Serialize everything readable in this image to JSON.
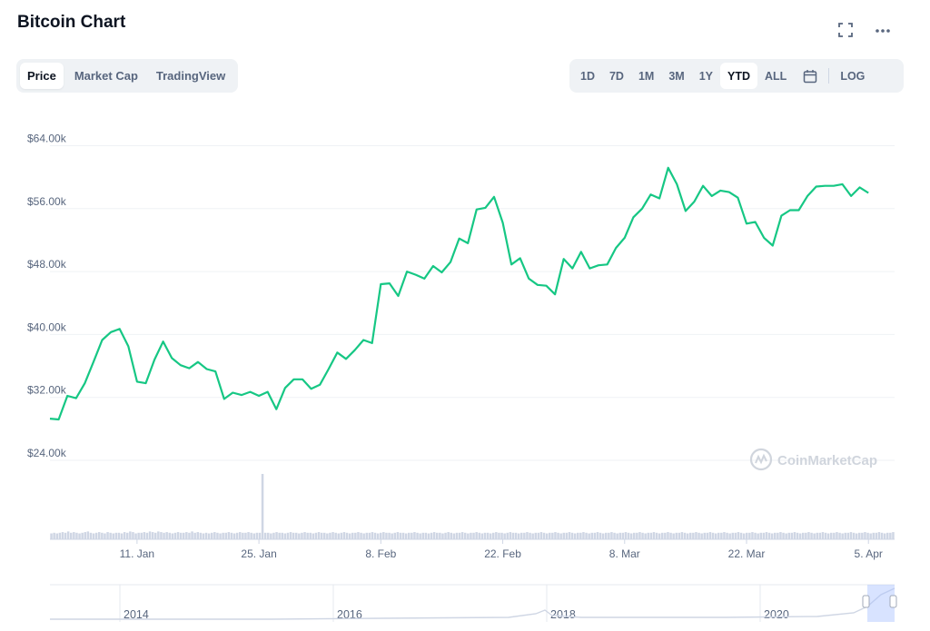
{
  "header": {
    "title": "Bitcoin Chart",
    "fullscreen_icon": "expand-icon",
    "more_icon": "more-horizontal-icon"
  },
  "tabs": [
    {
      "label": "Price",
      "active": true
    },
    {
      "label": "Market Cap",
      "active": false
    },
    {
      "label": "TradingView",
      "active": false
    }
  ],
  "ranges": [
    {
      "label": "1D",
      "active": false
    },
    {
      "label": "7D",
      "active": false
    },
    {
      "label": "1M",
      "active": false
    },
    {
      "label": "3M",
      "active": false
    },
    {
      "label": "1Y",
      "active": false
    },
    {
      "label": "YTD",
      "active": true
    },
    {
      "label": "ALL",
      "active": false
    }
  ],
  "range_extras": {
    "calendar_icon": "calendar-icon",
    "log_label": "LOG"
  },
  "watermark": "CoinMarketCap",
  "colors": {
    "line": "#16c784",
    "volume": "#cfd6e4",
    "grid": "#eff2f5",
    "text": "#58667e",
    "navigator_highlight": "#a8c2ff"
  },
  "navigator": {
    "labels": [
      "2014",
      "2016",
      "2018",
      "2020"
    ]
  },
  "chart_data": {
    "type": "line",
    "title": "",
    "xlabel": "",
    "ylabel": "",
    "x_tick_labels": [
      "11. Jan",
      "25. Jan",
      "8. Feb",
      "22. Feb",
      "8. Mar",
      "22. Mar",
      "5. Apr"
    ],
    "y_tick_labels": [
      "$24.00k",
      "$32.00k",
      "$40.00k",
      "$48.00k",
      "$56.00k",
      "$64.00k"
    ],
    "y_ticks": [
      24000,
      32000,
      40000,
      48000,
      56000,
      64000
    ],
    "ylim": [
      21000,
      64000
    ],
    "xlim": [
      "2021-01-01",
      "2021-04-08"
    ],
    "grid": true,
    "series": [
      {
        "values": [
          [
            "2021-01-01",
            29300
          ],
          [
            "2021-01-02",
            29200
          ],
          [
            "2021-01-03",
            32200
          ],
          [
            "2021-01-04",
            31900
          ],
          [
            "2021-01-05",
            33800
          ],
          [
            "2021-01-06",
            36500
          ],
          [
            "2021-01-07",
            39300
          ],
          [
            "2021-01-08",
            40300
          ],
          [
            "2021-01-09",
            40700
          ],
          [
            "2021-01-10",
            38500
          ],
          [
            "2021-01-11",
            34000
          ],
          [
            "2021-01-12",
            33800
          ],
          [
            "2021-01-13",
            36800
          ],
          [
            "2021-01-14",
            39100
          ],
          [
            "2021-01-15",
            37000
          ],
          [
            "2021-01-16",
            36100
          ],
          [
            "2021-01-17",
            35700
          ],
          [
            "2021-01-18",
            36500
          ],
          [
            "2021-01-19",
            35600
          ],
          [
            "2021-01-20",
            35300
          ],
          [
            "2021-01-21",
            31800
          ],
          [
            "2021-01-22",
            32600
          ],
          [
            "2021-01-23",
            32300
          ],
          [
            "2021-01-24",
            32700
          ],
          [
            "2021-01-25",
            32200
          ],
          [
            "2021-01-26",
            32700
          ],
          [
            "2021-01-27",
            30500
          ],
          [
            "2021-01-28",
            33200
          ],
          [
            "2021-01-29",
            34300
          ],
          [
            "2021-01-30",
            34300
          ],
          [
            "2021-01-31",
            33100
          ],
          [
            "2021-02-01",
            33600
          ],
          [
            "2021-02-02",
            35600
          ],
          [
            "2021-02-03",
            37700
          ],
          [
            "2021-02-04",
            36900
          ],
          [
            "2021-02-05",
            38000
          ],
          [
            "2021-02-06",
            39300
          ],
          [
            "2021-02-07",
            38900
          ],
          [
            "2021-02-08",
            46400
          ],
          [
            "2021-02-09",
            46500
          ],
          [
            "2021-02-10",
            44900
          ],
          [
            "2021-02-11",
            48000
          ],
          [
            "2021-02-12",
            47600
          ],
          [
            "2021-02-13",
            47100
          ],
          [
            "2021-02-14",
            48700
          ],
          [
            "2021-02-15",
            47900
          ],
          [
            "2021-02-16",
            49200
          ],
          [
            "2021-02-17",
            52200
          ],
          [
            "2021-02-18",
            51600
          ],
          [
            "2021-02-19",
            55900
          ],
          [
            "2021-02-20",
            56100
          ],
          [
            "2021-02-21",
            57500
          ],
          [
            "2021-02-22",
            54200
          ],
          [
            "2021-02-23",
            48900
          ],
          [
            "2021-02-24",
            49700
          ],
          [
            "2021-02-25",
            47100
          ],
          [
            "2021-02-26",
            46300
          ],
          [
            "2021-02-27",
            46200
          ],
          [
            "2021-02-28",
            45100
          ],
          [
            "2021-03-01",
            49600
          ],
          [
            "2021-03-02",
            48400
          ],
          [
            "2021-03-03",
            50500
          ],
          [
            "2021-03-04",
            48400
          ],
          [
            "2021-03-05",
            48800
          ],
          [
            "2021-03-06",
            48900
          ],
          [
            "2021-03-07",
            51000
          ],
          [
            "2021-03-08",
            52300
          ],
          [
            "2021-03-09",
            54900
          ],
          [
            "2021-03-10",
            56000
          ],
          [
            "2021-03-11",
            57800
          ],
          [
            "2021-03-12",
            57300
          ],
          [
            "2021-03-13",
            61200
          ],
          [
            "2021-03-14",
            59100
          ],
          [
            "2021-03-15",
            55700
          ],
          [
            "2021-03-16",
            56900
          ],
          [
            "2021-03-17",
            58900
          ],
          [
            "2021-03-18",
            57600
          ],
          [
            "2021-03-19",
            58300
          ],
          [
            "2021-03-20",
            58100
          ],
          [
            "2021-03-21",
            57400
          ],
          [
            "2021-03-22",
            54100
          ],
          [
            "2021-03-23",
            54300
          ],
          [
            "2021-03-24",
            52300
          ],
          [
            "2021-03-25",
            51300
          ],
          [
            "2021-03-26",
            55100
          ],
          [
            "2021-03-27",
            55800
          ],
          [
            "2021-03-28",
            55800
          ],
          [
            "2021-03-29",
            57600
          ],
          [
            "2021-03-30",
            58800
          ],
          [
            "2021-03-31",
            58900
          ],
          [
            "2021-04-01",
            58900
          ],
          [
            "2021-04-02",
            59100
          ],
          [
            "2021-04-03",
            57600
          ],
          [
            "2021-04-04",
            58700
          ],
          [
            "2021-04-05",
            58000
          ]
        ]
      }
    ],
    "volume": {
      "relative_values": [
        0.09,
        0.1,
        0.09,
        0.1,
        0.11,
        0.1,
        0.12,
        0.1,
        0.11,
        0.1,
        0.09,
        0.1,
        0.11,
        0.12,
        0.1,
        0.09,
        0.1,
        0.11,
        0.1,
        0.09,
        0.11,
        0.1,
        0.09,
        0.1,
        0.1,
        0.09,
        0.11,
        0.1,
        0.12,
        0.11,
        0.09,
        0.1,
        0.1,
        0.11,
        0.1,
        0.12,
        0.11,
        0.1,
        0.12,
        0.11,
        0.1,
        0.11,
        0.1,
        0.09,
        0.1,
        0.11,
        0.1,
        0.1,
        0.11,
        0.1,
        0.12,
        0.1,
        0.11,
        0.1,
        0.09,
        0.1,
        0.09,
        0.1,
        0.11,
        0.1,
        0.09,
        0.1,
        0.1,
        0.11,
        0.1,
        0.09,
        0.1,
        0.11,
        0.1,
        0.1,
        0.11,
        0.1,
        0.09,
        0.1,
        0.1,
        1.0,
        0.1,
        0.1,
        0.09,
        0.1,
        0.11,
        0.1,
        0.1,
        0.09,
        0.1,
        0.11,
        0.1,
        0.1,
        0.09,
        0.1,
        0.11,
        0.1,
        0.1,
        0.09,
        0.1,
        0.11,
        0.1,
        0.1,
        0.09,
        0.1,
        0.11,
        0.1,
        0.09,
        0.1,
        0.11,
        0.1,
        0.09,
        0.1,
        0.1,
        0.11,
        0.1,
        0.09,
        0.1,
        0.1,
        0.11,
        0.1,
        0.09,
        0.1,
        0.11,
        0.1,
        0.1,
        0.09,
        0.1,
        0.11,
        0.1,
        0.1,
        0.09,
        0.1,
        0.1,
        0.11,
        0.1,
        0.09,
        0.1,
        0.1,
        0.09,
        0.1,
        0.11,
        0.1,
        0.1,
        0.09,
        0.1,
        0.11,
        0.1,
        0.09,
        0.1,
        0.1,
        0.11,
        0.1,
        0.09,
        0.1,
        0.1,
        0.11,
        0.1,
        0.09,
        0.1,
        0.1,
        0.09,
        0.1,
        0.11,
        0.1,
        0.1,
        0.09,
        0.1,
        0.11,
        0.1,
        0.1,
        0.09,
        0.1,
        0.1,
        0.11,
        0.1,
        0.09,
        0.1,
        0.1,
        0.11,
        0.1,
        0.09,
        0.1,
        0.1,
        0.11,
        0.1,
        0.09,
        0.1,
        0.1,
        0.11,
        0.1,
        0.09,
        0.1,
        0.1,
        0.11,
        0.1,
        0.09,
        0.1,
        0.1,
        0.11,
        0.1,
        0.09,
        0.1,
        0.1,
        0.11,
        0.1,
        0.09,
        0.1,
        0.1,
        0.11,
        0.1,
        0.09,
        0.1,
        0.1,
        0.11,
        0.1,
        0.09,
        0.1,
        0.1,
        0.11,
        0.1,
        0.09,
        0.1,
        0.1,
        0.11,
        0.1,
        0.09,
        0.1,
        0.1,
        0.11,
        0.1,
        0.09,
        0.1,
        0.1,
        0.11,
        0.1,
        0.09,
        0.1,
        0.1,
        0.11,
        0.1,
        0.09,
        0.1,
        0.1,
        0.11,
        0.1,
        0.09,
        0.1,
        0.1,
        0.11,
        0.1,
        0.09,
        0.1,
        0.1,
        0.11,
        0.1,
        0.09,
        0.1,
        0.1,
        0.11,
        0.1,
        0.09,
        0.1,
        0.1,
        0.11,
        0.1,
        0.09,
        0.1,
        0.1,
        0.11,
        0.1,
        0.09,
        0.1,
        0.1,
        0.11,
        0.1,
        0.09,
        0.1,
        0.1,
        0.11,
        0.1,
        0.09,
        0.1,
        0.1,
        0.11,
        0.1,
        0.09,
        0.1,
        0.1,
        0.11,
        0.1,
        0.09,
        0.1,
        0.1,
        0.11,
        0.1,
        0.09,
        0.1,
        0.1,
        0.11,
        0.1,
        0.09,
        0.1,
        0.1,
        0.11
      ]
    }
  }
}
